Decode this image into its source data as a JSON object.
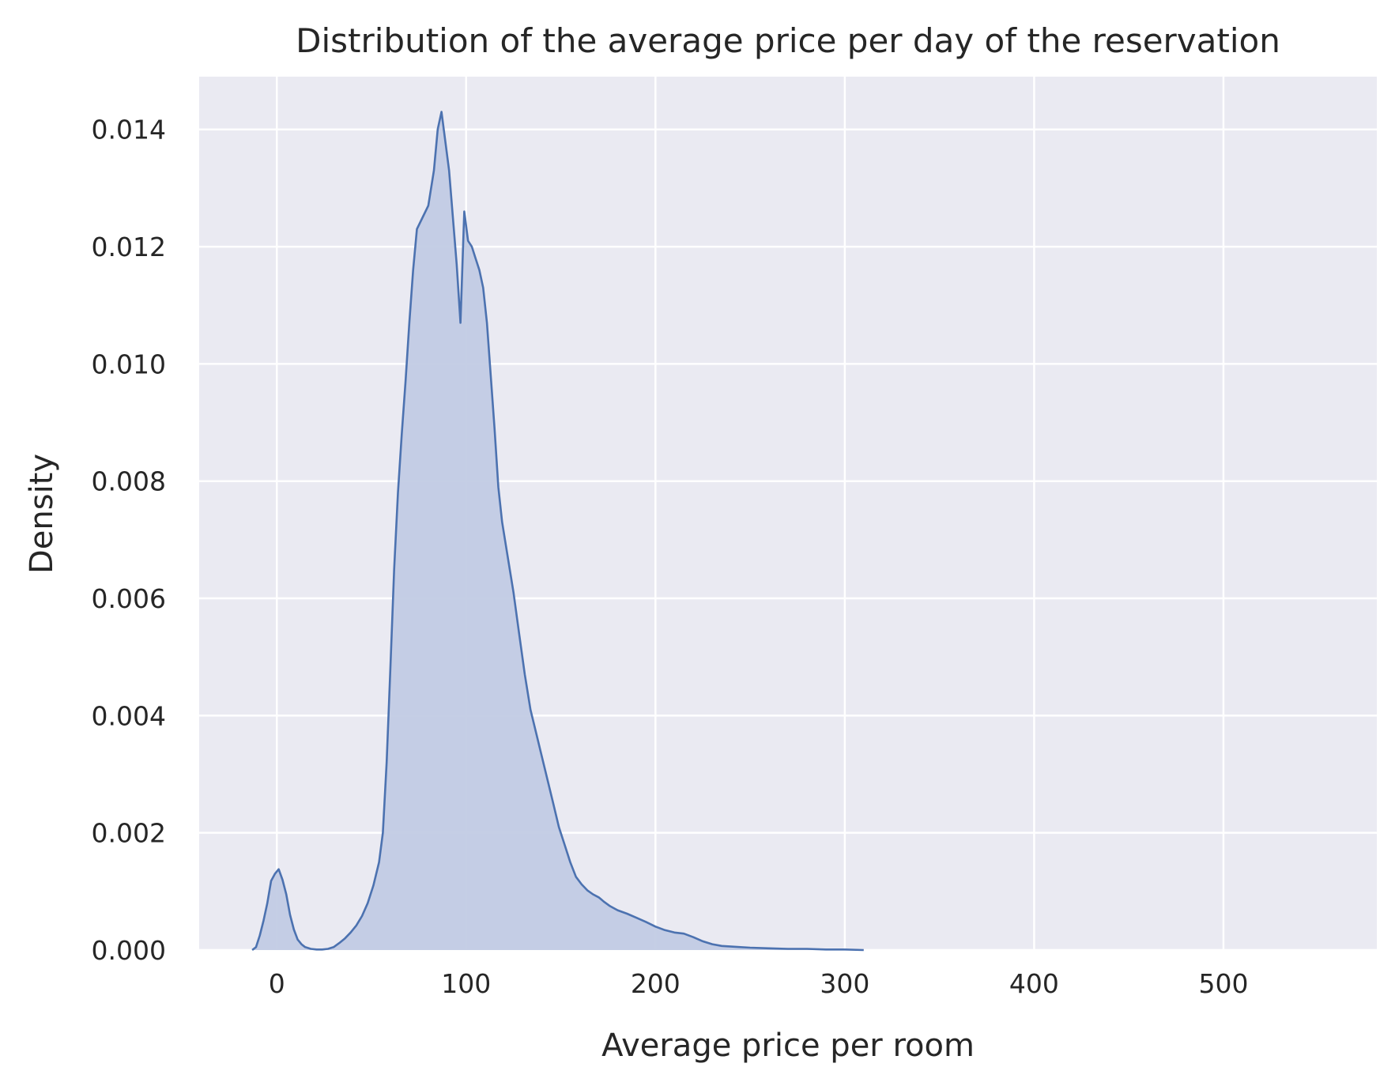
{
  "chart_data": {
    "type": "area",
    "title": "Distribution of the average price per day of the reservation",
    "xlabel": "Average price per room",
    "ylabel": "Density",
    "xlim": [
      -41,
      581
    ],
    "ylim": [
      0,
      0.0149
    ],
    "xticks": [
      0,
      100,
      200,
      300,
      400,
      500
    ],
    "xtick_labels": [
      "0",
      "100",
      "200",
      "300",
      "400",
      "500"
    ],
    "yticks": [
      0,
      0.002,
      0.004,
      0.006,
      0.008,
      0.01,
      0.012,
      0.014
    ],
    "ytick_labels": [
      "0.000",
      "0.002",
      "0.004",
      "0.006",
      "0.008",
      "0.010",
      "0.012",
      "0.014"
    ],
    "grid": true,
    "colors": {
      "plot_background": "#eaeaf2",
      "grid": "#ffffff",
      "line": "#4c72b0",
      "fill": "#c2cbe4"
    },
    "series": [
      {
        "x": [
          -13,
          -11,
          -9,
          -7,
          -5,
          -3,
          -1,
          1,
          3,
          5,
          7,
          9,
          11,
          13,
          15,
          18,
          21,
          24,
          27,
          30,
          33,
          36,
          39,
          42,
          45,
          48,
          51,
          54,
          56,
          58,
          60,
          62,
          64,
          66,
          68,
          70,
          72,
          74,
          77,
          80,
          83,
          85,
          87,
          89,
          91,
          93,
          95,
          97,
          99,
          101,
          103,
          105,
          107,
          109,
          111,
          113,
          115,
          117,
          119,
          121,
          123,
          125,
          128,
          131,
          134,
          137,
          140,
          143,
          146,
          149,
          152,
          155,
          158,
          161,
          164,
          167,
          170,
          173,
          176,
          180,
          185,
          190,
          195,
          200,
          205,
          210,
          215,
          220,
          225,
          230,
          235,
          240,
          245,
          250,
          260,
          270,
          280,
          290,
          300,
          310
        ],
        "y": [
          0,
          5e-05,
          0.00025,
          0.0005,
          0.0008,
          0.00118,
          0.0013,
          0.00138,
          0.0012,
          0.00095,
          0.0006,
          0.00035,
          0.00018,
          0.0001,
          5e-05,
          2e-05,
          1e-05,
          1e-05,
          2e-05,
          5e-05,
          0.00012,
          0.0002,
          0.0003,
          0.00042,
          0.00058,
          0.0008,
          0.0011,
          0.0015,
          0.002,
          0.0032,
          0.0048,
          0.0065,
          0.0078,
          0.0088,
          0.0097,
          0.0107,
          0.0116,
          0.0123,
          0.0125,
          0.0127,
          0.0133,
          0.014,
          0.0143,
          0.0138,
          0.0133,
          0.0125,
          0.0117,
          0.0107,
          0.0126,
          0.0121,
          0.012,
          0.0118,
          0.0116,
          0.0113,
          0.0107,
          0.0098,
          0.0089,
          0.0079,
          0.0073,
          0.0069,
          0.0065,
          0.0061,
          0.0054,
          0.0047,
          0.0041,
          0.0037,
          0.0033,
          0.0029,
          0.0025,
          0.0021,
          0.0018,
          0.0015,
          0.00125,
          0.00112,
          0.00102,
          0.00095,
          0.0009,
          0.00082,
          0.00075,
          0.00068,
          0.00062,
          0.00055,
          0.00048,
          0.0004,
          0.00034,
          0.0003,
          0.00028,
          0.00022,
          0.00015,
          0.0001,
          7e-05,
          6e-05,
          5e-05,
          4e-05,
          3e-05,
          2e-05,
          2e-05,
          1e-05,
          1e-05,
          0
        ]
      }
    ]
  }
}
